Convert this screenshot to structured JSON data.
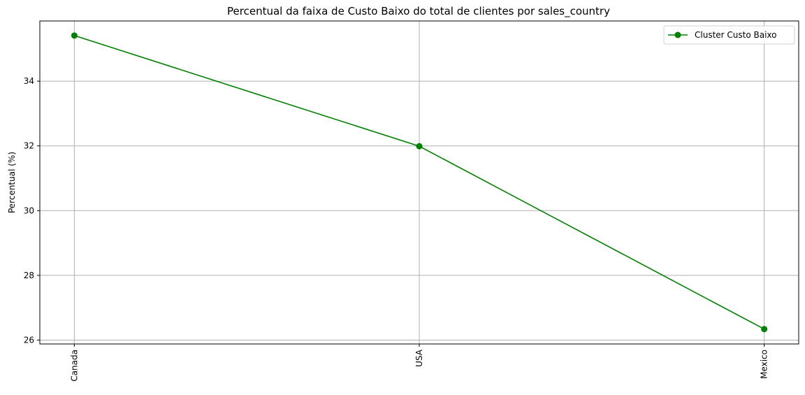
{
  "chart_data": {
    "type": "line",
    "title": "Percentual da faixa de Custo Baixo do total de clientes por sales_country",
    "xlabel": "",
    "ylabel": "Percentual (%)",
    "categories": [
      "Canada",
      "USA",
      "Mexico"
    ],
    "series": [
      {
        "name": "Cluster Custo Baixo",
        "values": [
          35.41,
          31.99,
          26.34
        ],
        "color": "#008000",
        "marker": "circle"
      }
    ],
    "ylim": [
      25.88,
      35.86
    ],
    "yticks": [
      26,
      28,
      30,
      32,
      34
    ],
    "grid": true,
    "legend_position": "top-right",
    "xtick_rotation": "vertical"
  }
}
